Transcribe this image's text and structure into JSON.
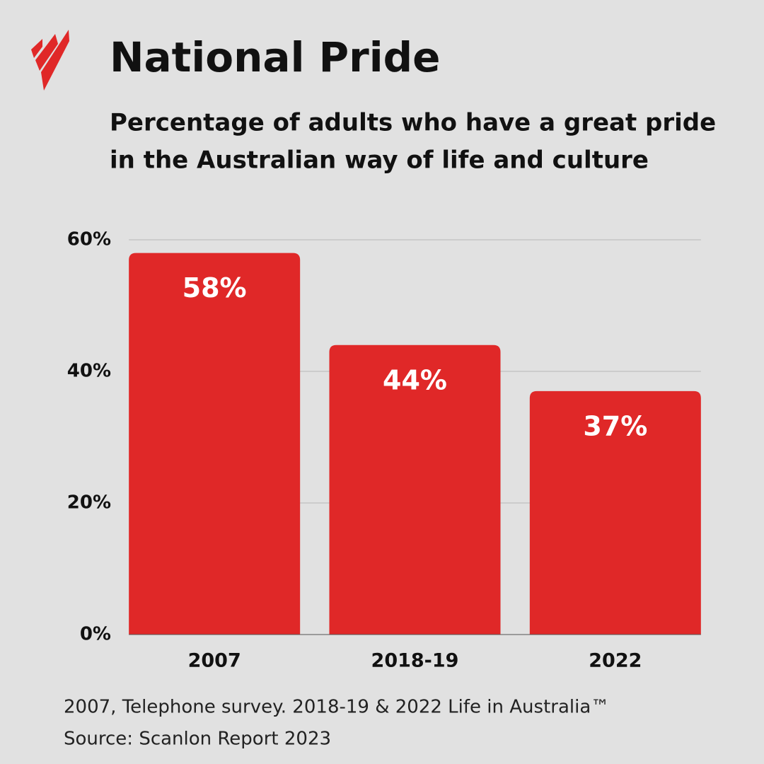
{
  "chart_data": {
    "type": "bar",
    "title": "National Pride",
    "subtitle": [
      "Percentage of adults who have a great pride",
      "in the Australian way of life and culture"
    ],
    "categories": [
      "2007",
      "2018-19",
      "2022"
    ],
    "values": [
      58,
      44,
      37
    ],
    "value_labels": [
      "58%",
      "44%",
      "37%"
    ],
    "color": "#e02828",
    "ylim": [
      0,
      60
    ],
    "yticks": [
      {
        "value": 0,
        "label": "0%"
      },
      {
        "value": 20,
        "label": "20%"
      },
      {
        "value": 40,
        "label": "40%"
      },
      {
        "value": 60,
        "label": "60%"
      }
    ],
    "grid": true,
    "notes": [
      "2007, Telephone survey. 2018-19 & 2022 Life in Australia™",
      "Source: Scanlon Report 2023"
    ]
  }
}
